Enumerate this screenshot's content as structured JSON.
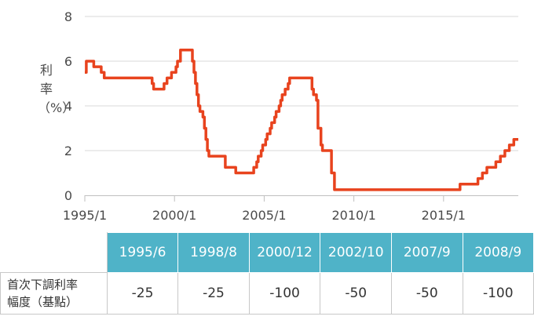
{
  "chart_data": {
    "type": "line",
    "title": "",
    "xlabel": "",
    "ylabel": "利率（%）",
    "ylim": [
      0,
      8
    ],
    "xlim": [
      "1995-01",
      "2019-03"
    ],
    "yticks": [
      "0",
      "2",
      "4",
      "6",
      "8"
    ],
    "xticks": [
      {
        "date": "1995-01",
        "label": "1995/1"
      },
      {
        "date": "2000-01",
        "label": "2000/1"
      },
      {
        "date": "2005-01",
        "label": "2005/1"
      },
      {
        "date": "2010-01",
        "label": "2010/1"
      },
      {
        "date": "2015-01",
        "label": "2015/1"
      }
    ],
    "grid": true,
    "color": "#e8431e",
    "series": [
      {
        "x": [
          "1995-01",
          "1995-02",
          "1995-07",
          "1995-12",
          "1996-01",
          "1996-02",
          "1998-09",
          "1998-10",
          "1998-11",
          "1999-06",
          "1999-08",
          "1999-11",
          "2000-02",
          "2000-03",
          "2000-05",
          "2001-01",
          "2001-02",
          "2001-03",
          "2001-04",
          "2001-05",
          "2001-06",
          "2001-08",
          "2001-09",
          "2001-10",
          "2001-11",
          "2001-12",
          "2002-11",
          "2003-06",
          "2004-06",
          "2004-08",
          "2004-09",
          "2004-11",
          "2004-12",
          "2005-02",
          "2005-03",
          "2005-05",
          "2005-06",
          "2005-08",
          "2005-09",
          "2005-11",
          "2005-12",
          "2006-01",
          "2006-03",
          "2006-05",
          "2006-06",
          "2007-09",
          "2007-10",
          "2007-12",
          "2008-01",
          "2008-03",
          "2008-04",
          "2008-10",
          "2008-12",
          "2015-12",
          "2016-12",
          "2017-03",
          "2017-06",
          "2017-12",
          "2018-03",
          "2018-06",
          "2018-09",
          "2018-12",
          "2019-03"
        ],
        "y": [
          5.5,
          6.0,
          5.75,
          5.5,
          5.5,
          5.25,
          5.25,
          5.0,
          4.75,
          5.0,
          5.25,
          5.5,
          5.75,
          6.0,
          6.5,
          6.0,
          5.5,
          5.0,
          4.5,
          4.0,
          3.75,
          3.5,
          3.0,
          2.5,
          2.0,
          1.75,
          1.25,
          1.0,
          1.25,
          1.5,
          1.75,
          2.0,
          2.25,
          2.5,
          2.75,
          3.0,
          3.25,
          3.5,
          3.75,
          4.0,
          4.25,
          4.5,
          4.75,
          5.0,
          5.25,
          4.75,
          4.5,
          4.25,
          3.0,
          2.25,
          2.0,
          1.0,
          0.25,
          0.5,
          0.75,
          1.0,
          1.25,
          1.5,
          1.75,
          2.0,
          2.25,
          2.5,
          2.5
        ]
      }
    ]
  },
  "table": {
    "row_label_line1": "首次下調利率",
    "row_label_line2": "幅度（基點）",
    "columns": [
      {
        "date": "1995/6",
        "value": "-25"
      },
      {
        "date": "1998/8",
        "value": "-25"
      },
      {
        "date": "2000/12",
        "value": "-100"
      },
      {
        "date": "2002/10",
        "value": "-50"
      },
      {
        "date": "2007/9",
        "value": "-50"
      },
      {
        "date": "2008/9",
        "value": "-100"
      }
    ]
  }
}
